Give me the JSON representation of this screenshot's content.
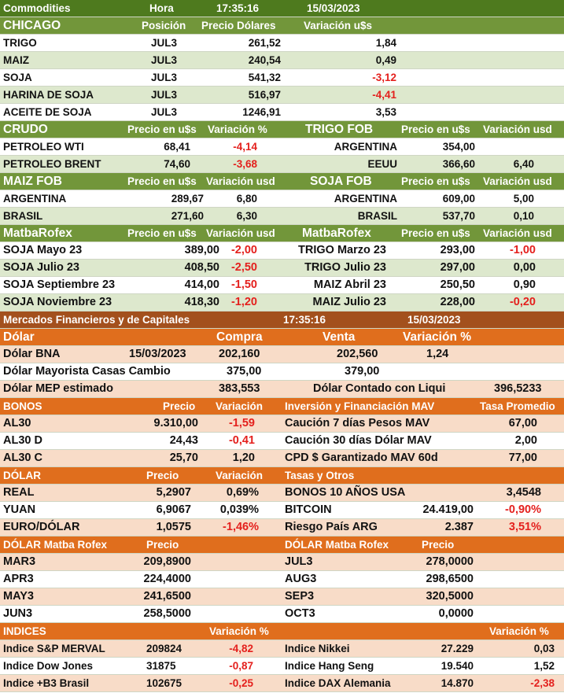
{
  "header": {
    "title": "Commodities",
    "hora_label": "Hora",
    "time": "17:35:16",
    "date": "15/03/2023"
  },
  "chicago": {
    "title": "CHICAGO",
    "col_pos": "Posición",
    "col_precio": "Precio Dólares",
    "col_var": "Variación u$s",
    "rows": [
      {
        "name": "TRIGO",
        "pos": "JUL3",
        "price": "261,52",
        "var": "1,84"
      },
      {
        "name": "MAIZ",
        "pos": "JUL3",
        "price": "240,54",
        "var": "0,49"
      },
      {
        "name": "SOJA",
        "pos": "JUL3",
        "price": "541,32",
        "var": "-3,12"
      },
      {
        "name": "HARINA DE SOJA",
        "pos": "JUL3",
        "price": "516,97",
        "var": "-4,41"
      },
      {
        "name": "ACEITE DE SOJA",
        "pos": "JUL3",
        "price": "1246,91",
        "var": "3,53"
      }
    ]
  },
  "crudo": {
    "title": "CRUDO",
    "col_precio": "Precio en u$s",
    "col_var": "Variación %",
    "rows": [
      {
        "name": "PETROLEO WTI",
        "price": "68,41",
        "var": "-4,14"
      },
      {
        "name": "PETROLEO BRENT",
        "price": "74,60",
        "var": "-3,68"
      }
    ]
  },
  "trigo_fob": {
    "title": "TRIGO FOB",
    "col_precio": "Precio en u$s",
    "col_var": "Variación usd",
    "rows": [
      {
        "name": "ARGENTINA",
        "price": "354,00",
        "var": ""
      },
      {
        "name": "EEUU",
        "price": "366,60",
        "var": "6,40"
      }
    ]
  },
  "maiz_fob": {
    "title": "MAIZ FOB",
    "col_precio": "Precio en u$s",
    "col_var": "Variación usd",
    "rows": [
      {
        "name": "ARGENTINA",
        "price": "289,67",
        "var": "6,80"
      },
      {
        "name": "BRASIL",
        "price": "271,60",
        "var": "6,30"
      }
    ]
  },
  "soja_fob": {
    "title": "SOJA FOB",
    "col_precio": "Precio en u$s",
    "col_var": "Variación usd",
    "rows": [
      {
        "name": "ARGENTINA",
        "price": "609,00",
        "var": "5,00"
      },
      {
        "name": "BRASIL",
        "price": "537,70",
        "var": "0,10"
      }
    ]
  },
  "matba_left": {
    "title": "MatbaRofex",
    "col_precio": "Precio en u$s",
    "col_var": "Variación usd",
    "rows": [
      {
        "name": "SOJA Mayo 23",
        "price": "389,00",
        "var": "-2,00"
      },
      {
        "name": "SOJA Julio 23",
        "price": "408,50",
        "var": "-2,50"
      },
      {
        "name": "SOJA Septiembre 23",
        "price": "414,00",
        "var": "-1,50"
      },
      {
        "name": "SOJA Noviembre 23",
        "price": "418,30",
        "var": "-1,20"
      }
    ]
  },
  "matba_right": {
    "title": "MatbaRofex",
    "col_precio": "Precio en u$s",
    "col_var": "Variación usd",
    "rows": [
      {
        "name": "TRIGO Marzo 23",
        "price": "293,00",
        "var": "-1,00"
      },
      {
        "name": "TRIGO Julio 23",
        "price": "297,00",
        "var": "0,00"
      },
      {
        "name": "MAIZ Abril 23",
        "price": "250,50",
        "var": "0,90"
      },
      {
        "name": "MAIZ Julio 23",
        "price": "228,00",
        "var": "-0,20"
      }
    ]
  },
  "mercados": {
    "title": "Mercados Financieros y de Capitales",
    "time": "17:35:16",
    "date": "15/03/2023"
  },
  "dolar": {
    "title": "Dólar",
    "col_compra": "Compra",
    "col_venta": "Venta",
    "col_var": "Variación %",
    "bna": {
      "name": "Dólar BNA",
      "date": "15/03/2023",
      "compra": "202,160",
      "venta": "202,560",
      "var": "1,24"
    },
    "mayorista": {
      "name": "Dólar Mayorista Casas Cambio",
      "compra": "375,00",
      "venta": "379,00"
    },
    "mep": {
      "name": "Dólar MEP estimado",
      "value": "383,553"
    },
    "ccl": {
      "name": "Dólar Contado con Liqui",
      "value": "396,5233"
    }
  },
  "bonos": {
    "title": "BONOS",
    "col_precio": "Precio",
    "col_var": "Variación",
    "rows": [
      {
        "name": "AL30",
        "price": "9.310,00",
        "var": "-1,59"
      },
      {
        "name": "AL30 D",
        "price": "24,43",
        "var": "-0,41"
      },
      {
        "name": "AL30 C",
        "price": "25,70",
        "var": "1,20"
      }
    ]
  },
  "mav": {
    "title": "Inversión y Financiación MAV",
    "col_tasa": "Tasa Promedio",
    "rows": [
      {
        "name": "Caución 7 días Pesos MAV",
        "value": "67,00"
      },
      {
        "name": "Caución 30 días Dólar MAV",
        "value": "2,00"
      },
      {
        "name": "CPD $ Garantizado  MAV 60d",
        "value": "77,00"
      }
    ]
  },
  "dolar2": {
    "title": "DÓLAR",
    "col_precio": "Precio",
    "col_var": "Variación",
    "rows": [
      {
        "name": "REAL",
        "price": "5,2907",
        "var": "0,69%"
      },
      {
        "name": "YUAN",
        "price": "6,9067",
        "var": "0,039%"
      },
      {
        "name": "EURO/DÓLAR",
        "price": "1,0575",
        "var": "-1,46%"
      }
    ]
  },
  "tasas": {
    "title": "Tasas y Otros",
    "rows": [
      {
        "name": "BONOS 10 AÑOS USA",
        "price": "",
        "var": "3,4548"
      },
      {
        "name": "BITCOIN",
        "price": "24.419,00",
        "var": "-0,90%"
      },
      {
        "name": "Riesgo País ARG",
        "price": "2.387",
        "var": "3,51%"
      }
    ]
  },
  "dolar_matba_left": {
    "title": "DÓLAR Matba Rofex",
    "col_precio": "Precio",
    "rows": [
      {
        "name": "MAR3",
        "price": "209,8900"
      },
      {
        "name": "APR3",
        "price": "224,4000"
      },
      {
        "name": "MAY3",
        "price": "241,6500"
      },
      {
        "name": "JUN3",
        "price": "258,5000"
      }
    ]
  },
  "dolar_matba_right": {
    "title": "DÓLAR Matba Rofex",
    "col_precio": "Precio",
    "rows": [
      {
        "name": "JUL3",
        "price": "278,0000"
      },
      {
        "name": "AUG3",
        "price": "298,6500"
      },
      {
        "name": "SEP3",
        "price": "320,5000"
      },
      {
        "name": "OCT3",
        "price": "0,0000"
      }
    ]
  },
  "indices": {
    "title": "INDICES",
    "col_var_left": "Variación %",
    "col_var_right": "Variación %",
    "left": [
      {
        "name": "Indice S&P MERVAL",
        "value": "209824",
        "var": "-4,82"
      },
      {
        "name": "Indice Dow Jones",
        "value": "31875",
        "var": "-0,87"
      },
      {
        "name": "Indice +B3 Brasil",
        "value": "102675",
        "var": "-0,25"
      }
    ],
    "right": [
      {
        "name": "Indice Nikkei",
        "value": "27.229",
        "var": "0,03"
      },
      {
        "name": "Indice Hang Seng",
        "value": "19.540",
        "var": "1,52"
      },
      {
        "name": "Indice DAX Alemania",
        "value": "14.870",
        "var": "-2,38"
      }
    ]
  },
  "colors": {
    "green_header": "#72963a",
    "dark_green": "#4e7a1e",
    "light_green": "#dde8cd",
    "orange_header": "#e06e1d",
    "brown_header": "#a3501d",
    "light_orange": "#f8dcc8",
    "negative": "#e4201d"
  }
}
